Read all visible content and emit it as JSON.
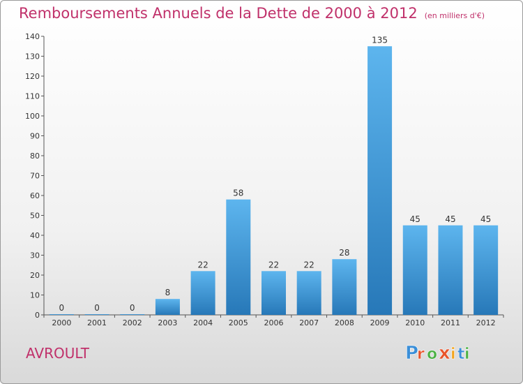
{
  "title": "Remboursements Annuels de la Dette de 2000 à 2012",
  "unit": "(en milliers d'€)",
  "commune": "AVROULT",
  "brand": {
    "letters": [
      "P",
      "r",
      "o",
      "x",
      "i",
      "t",
      "i"
    ],
    "colors": [
      "#3b8fd8",
      "#e8542b",
      "#4ab143",
      "#e8542b",
      "#f2a31b",
      "#3b8fd8",
      "#4ab143"
    ]
  },
  "colors": {
    "title": "#c0306a",
    "bar_top": "#5db5ee",
    "bar_bottom": "#2778b8"
  },
  "chart_data": {
    "type": "bar",
    "categories": [
      "2000",
      "2001",
      "2002",
      "2003",
      "2004",
      "2005",
      "2006",
      "2007",
      "2008",
      "2009",
      "2010",
      "2011",
      "2012"
    ],
    "values": [
      0,
      0,
      0,
      8,
      22,
      58,
      22,
      22,
      28,
      135,
      45,
      45,
      45
    ],
    "ylim": [
      0,
      140
    ],
    "yticks": [
      0,
      10,
      20,
      30,
      40,
      50,
      60,
      70,
      80,
      90,
      100,
      110,
      120,
      130,
      140
    ],
    "grid": false,
    "data_labels": true
  }
}
